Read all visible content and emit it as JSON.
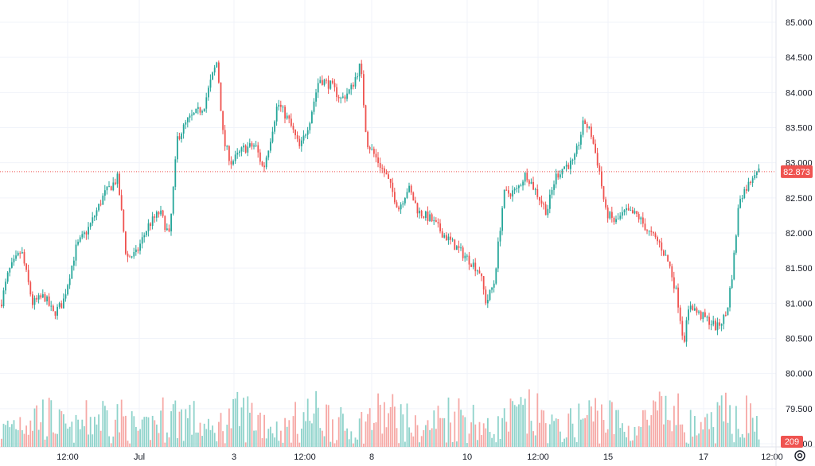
{
  "chart_data": {
    "type": "candlestick",
    "title": "",
    "price_axis": {
      "ticks": [
        "85.000",
        "84.500",
        "84.000",
        "83.500",
        "83.000",
        "82.500",
        "82.000",
        "81.500",
        "81.000",
        "80.500",
        "80.000",
        "79.500",
        "79.000"
      ],
      "range": [
        79.0,
        85.15
      ]
    },
    "time_axis": {
      "ticks": [
        "12:00",
        "Jul",
        "3",
        "12:00",
        "8",
        "10",
        "12:00",
        "15",
        "17",
        "12:00"
      ]
    },
    "last_price": {
      "value": 82.873,
      "label": "82.873"
    },
    "last_volume": {
      "label": "209"
    },
    "colors": {
      "up": "#26a69a",
      "down": "#ef5350",
      "up_volume": "#8fd3cb",
      "down_volume": "#f6a9a6",
      "grid": "#f0f3fa",
      "price_line": "#ef5350",
      "axis_text": "#131722"
    },
    "path_points": [
      [
        0,
        80.98
      ],
      [
        10,
        81.45
      ],
      [
        26,
        81.75
      ],
      [
        40,
        81.0
      ],
      [
        55,
        81.1
      ],
      [
        66,
        80.85
      ],
      [
        78,
        81.0
      ],
      [
        95,
        81.8
      ],
      [
        112,
        82.1
      ],
      [
        130,
        82.55
      ],
      [
        147,
        82.78
      ],
      [
        158,
        81.65
      ],
      [
        170,
        81.7
      ],
      [
        185,
        82.1
      ],
      [
        200,
        82.3
      ],
      [
        212,
        81.95
      ],
      [
        222,
        83.35
      ],
      [
        235,
        83.6
      ],
      [
        255,
        83.8
      ],
      [
        265,
        84.2
      ],
      [
        272,
        84.45
      ],
      [
        280,
        83.3
      ],
      [
        290,
        83.0
      ],
      [
        305,
        83.2
      ],
      [
        320,
        83.25
      ],
      [
        330,
        82.9
      ],
      [
        338,
        83.3
      ],
      [
        348,
        83.85
      ],
      [
        362,
        83.6
      ],
      [
        376,
        83.2
      ],
      [
        388,
        83.6
      ],
      [
        400,
        84.2
      ],
      [
        415,
        84.1
      ],
      [
        428,
        83.9
      ],
      [
        440,
        84.05
      ],
      [
        452,
        84.4
      ],
      [
        460,
        83.3
      ],
      [
        475,
        83.0
      ],
      [
        485,
        82.8
      ],
      [
        500,
        82.35
      ],
      [
        512,
        82.65
      ],
      [
        525,
        82.3
      ],
      [
        540,
        82.2
      ],
      [
        555,
        82.0
      ],
      [
        572,
        81.8
      ],
      [
        590,
        81.6
      ],
      [
        602,
        81.45
      ],
      [
        610,
        81.0
      ],
      [
        620,
        81.3
      ],
      [
        632,
        82.55
      ],
      [
        648,
        82.6
      ],
      [
        660,
        82.85
      ],
      [
        672,
        82.6
      ],
      [
        686,
        82.3
      ],
      [
        697,
        82.8
      ],
      [
        708,
        82.95
      ],
      [
        720,
        83.0
      ],
      [
        733,
        83.6
      ],
      [
        742,
        83.4
      ],
      [
        752,
        82.9
      ],
      [
        760,
        82.3
      ],
      [
        772,
        82.15
      ],
      [
        785,
        82.3
      ],
      [
        800,
        82.25
      ],
      [
        815,
        82.0
      ],
      [
        828,
        81.85
      ],
      [
        840,
        81.55
      ],
      [
        850,
        81.1
      ],
      [
        858,
        80.45
      ],
      [
        866,
        81.0
      ],
      [
        876,
        80.85
      ],
      [
        890,
        80.75
      ],
      [
        900,
        80.65
      ],
      [
        912,
        80.85
      ],
      [
        920,
        81.5
      ],
      [
        928,
        82.5
      ],
      [
        940,
        82.7
      ],
      [
        948,
        82.9
      ],
      [
        954,
        82.87
      ]
    ]
  }
}
